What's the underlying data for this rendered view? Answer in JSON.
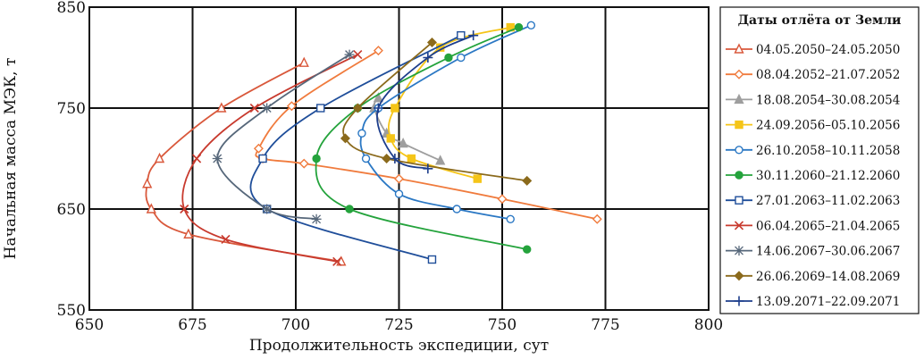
{
  "chart_data": {
    "type": "line",
    "xlabel": "Продолжительность экспедиции, сут",
    "ylabel": "Начальная масса МЭК, т",
    "xlim": [
      650,
      800
    ],
    "ylim": [
      550,
      850
    ],
    "xticks": [
      650,
      675,
      700,
      725,
      750,
      775,
      800
    ],
    "yticks": [
      550,
      650,
      750,
      850
    ],
    "grid": true,
    "legend": {
      "title": "Даты отлёта от Земли",
      "position": "right"
    },
    "series": [
      {
        "name": "04.05.2050–24.05.2050",
        "color": "#d9583b",
        "marker": "triangle-open",
        "x": [
          702,
          682,
          667,
          664,
          665,
          674,
          711
        ],
        "y": [
          795,
          750,
          700,
          675,
          650,
          625,
          598
        ]
      },
      {
        "name": "08.04.2052–21.07.2052",
        "color": "#f07b3d",
        "marker": "diamond-open",
        "x": [
          720,
          699,
          691,
          692,
          702,
          725,
          750,
          773
        ],
        "y": [
          807,
          752,
          710,
          700,
          695,
          680,
          660,
          640
        ]
      },
      {
        "name": "18.08.2054–30.08.2054",
        "color": "#9e9e9e",
        "marker": "triangle-filled",
        "x": [
          720,
          719,
          722,
          726,
          735
        ],
        "y": [
          760,
          750,
          725,
          715,
          698
        ]
      },
      {
        "name": "24.09.2056–05.10.2056",
        "color": "#f5c518",
        "marker": "square-filled",
        "x": [
          752,
          735,
          724,
          723,
          728,
          744
        ],
        "y": [
          830,
          810,
          750,
          720,
          700,
          680
        ]
      },
      {
        "name": "26.10.2058–10.11.2058",
        "color": "#2b78c4",
        "marker": "circle-open",
        "x": [
          757,
          740,
          720,
          716,
          717,
          725,
          739,
          752
        ],
        "y": [
          832,
          800,
          750,
          725,
          700,
          665,
          650,
          640
        ]
      },
      {
        "name": "30.11.2060–21.12.2060",
        "color": "#24a33c",
        "marker": "circle-filled",
        "x": [
          754,
          737,
          715,
          705,
          713,
          756
        ],
        "y": [
          830,
          800,
          750,
          700,
          650,
          610
        ]
      },
      {
        "name": "27.01.2063–11.02.2063",
        "color": "#1f4e9a",
        "marker": "square-open",
        "x": [
          740,
          706,
          692,
          693,
          733
        ],
        "y": [
          822,
          750,
          700,
          650,
          600
        ]
      },
      {
        "name": "06.04.2065–21.04.2065",
        "color": "#c83a2e",
        "marker": "x",
        "x": [
          715,
          690,
          676,
          673,
          683,
          710
        ],
        "y": [
          803,
          750,
          700,
          650,
          620,
          598
        ]
      },
      {
        "name": "14.06.2067–30.06.2067",
        "color": "#56677a",
        "marker": "asterisk",
        "x": [
          713,
          693,
          681,
          693,
          705
        ],
        "y": [
          803,
          750,
          700,
          650,
          640
        ]
      },
      {
        "name": "26.06.2069–14.08.2069",
        "color": "#8b6a1c",
        "marker": "diamond-filled",
        "x": [
          733,
          715,
          712,
          722,
          756
        ],
        "y": [
          815,
          750,
          720,
          700,
          678
        ]
      },
      {
        "name": "13.09.2071–22.09.2071",
        "color": "#1d3e8c",
        "marker": "plus",
        "x": [
          743,
          732,
          720,
          724,
          732
        ],
        "y": [
          822,
          800,
          750,
          700,
          690
        ]
      }
    ]
  }
}
